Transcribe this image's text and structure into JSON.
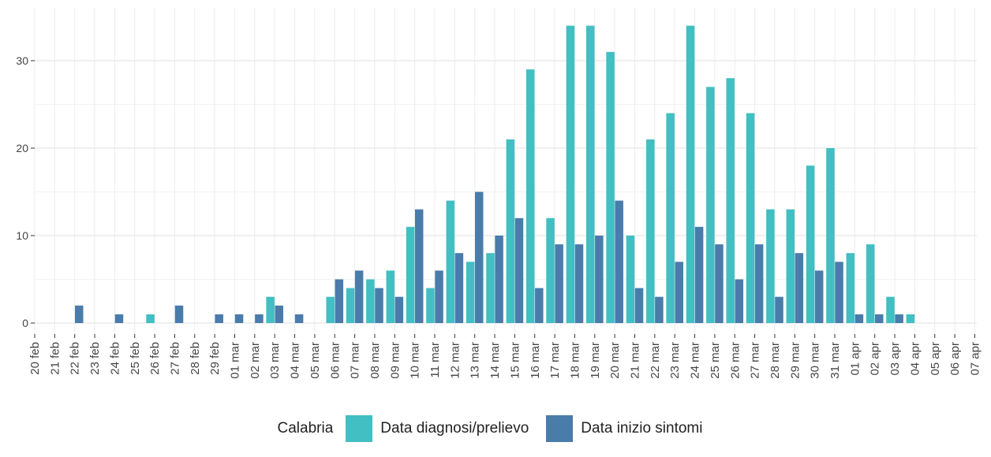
{
  "chart_data": {
    "type": "bar",
    "title": "",
    "xlabel": "",
    "ylabel": "",
    "ylim": [
      -1.2,
      35
    ],
    "yticks": [
      0,
      10,
      20,
      30
    ],
    "grid": true,
    "legend": {
      "title": "Calabria",
      "position": "bottom"
    },
    "categories": [
      "20 feb",
      "21 feb",
      "22 feb",
      "23 feb",
      "24 feb",
      "25 feb",
      "26 feb",
      "27 feb",
      "28 feb",
      "29 feb",
      "01 mar",
      "02 mar",
      "03 mar",
      "04 mar",
      "05 mar",
      "06 mar",
      "07 mar",
      "08 mar",
      "09 mar",
      "10 mar",
      "11 mar",
      "12 mar",
      "13 mar",
      "14 mar",
      "15 mar",
      "16 mar",
      "17 mar",
      "18 mar",
      "19 mar",
      "20 mar",
      "21 mar",
      "22 mar",
      "23 mar",
      "24 mar",
      "25 mar",
      "26 mar",
      "27 mar",
      "28 mar",
      "29 mar",
      "30 mar",
      "31 mar",
      "01 apr",
      "02 apr",
      "03 apr",
      "04 apr",
      "05 apr",
      "06 apr",
      "07 apr"
    ],
    "series": [
      {
        "name": "Data diagnosi/prelievo",
        "color": "#41bfc2",
        "values": [
          0,
          0,
          0,
          0,
          0,
          0,
          1,
          0,
          0,
          0,
          0,
          0,
          3,
          0,
          0,
          3,
          4,
          5,
          6,
          11,
          4,
          14,
          7,
          8,
          21,
          29,
          12,
          34,
          34,
          31,
          10,
          21,
          24,
          34,
          27,
          28,
          24,
          13,
          13,
          18,
          20,
          8,
          9,
          3,
          1,
          0,
          0,
          0
        ]
      },
      {
        "name": "Data inizio sintomi",
        "color": "#4a7cab",
        "values": [
          0,
          0,
          2,
          0,
          1,
          0,
          0,
          2,
          0,
          1,
          1,
          1,
          2,
          1,
          0,
          5,
          6,
          4,
          3,
          13,
          6,
          8,
          15,
          10,
          12,
          4,
          9,
          9,
          10,
          14,
          4,
          3,
          7,
          11,
          9,
          5,
          9,
          3,
          8,
          6,
          7,
          1,
          1,
          1,
          0,
          0,
          0,
          0
        ]
      }
    ]
  }
}
